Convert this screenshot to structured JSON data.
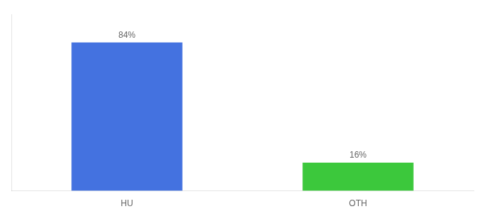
{
  "chart_data": {
    "type": "bar",
    "categories": [
      "HU",
      "OTH"
    ],
    "values": [
      84,
      16
    ],
    "colors": [
      "#4472e0",
      "#3cc83c"
    ],
    "data_labels": true,
    "value_labels": [
      "84%",
      "16%"
    ],
    "ylim": [
      0,
      100
    ],
    "grid": false,
    "tick_labels": "x"
  }
}
